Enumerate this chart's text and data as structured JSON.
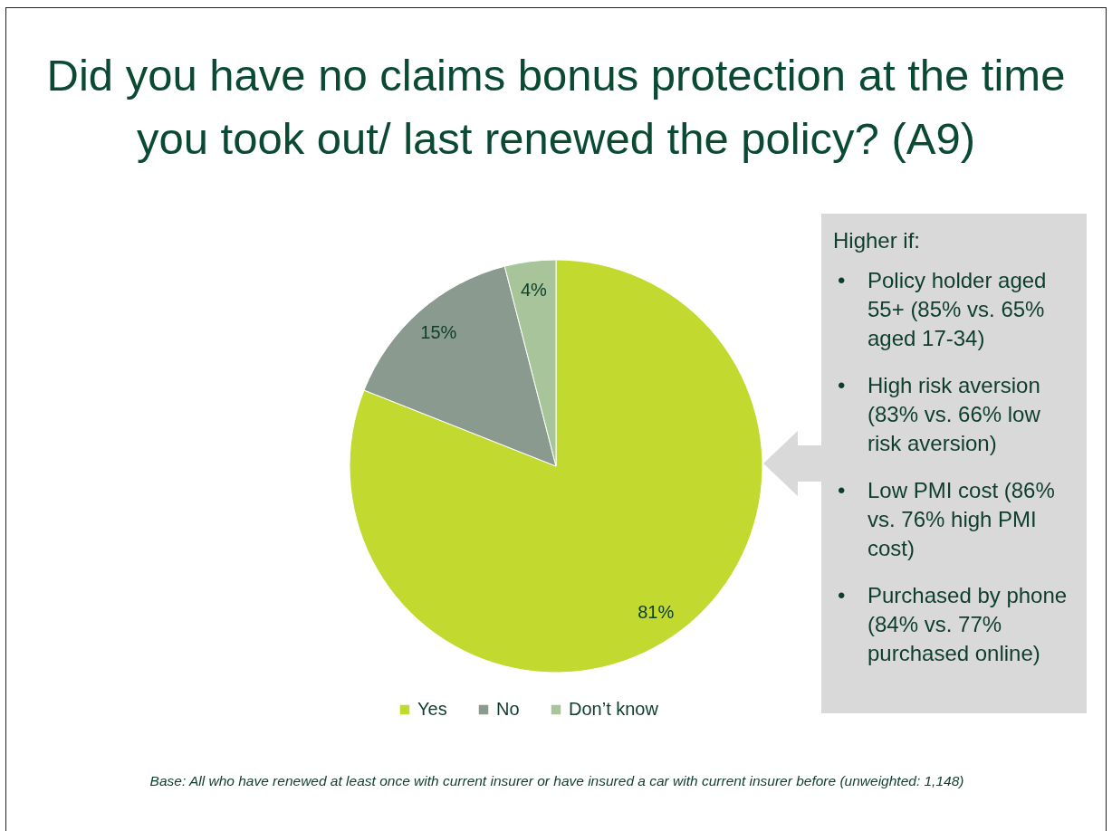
{
  "chart_data": {
    "type": "pie",
    "title": "Did you have no claims bonus protection at the time you took out/ last renewed the policy? (A9)",
    "categories": [
      "Yes",
      "No",
      "Don’t know"
    ],
    "values": [
      81,
      15,
      4
    ],
    "value_labels": [
      "81%",
      "15%",
      "4%"
    ],
    "colors": [
      "#c2d92f",
      "#8b9a8f",
      "#a8c49a"
    ],
    "legend": "bottom",
    "annotations": [
      "Higher if:",
      "• Policy holder aged 55+ (85% vs. 65% aged 17-34)",
      "• High risk aversion (83% vs. 66% low risk aversion)",
      "• Low PMI cost (86% vs. 76% high PMI cost)",
      "• Purchased by phone (84% vs. 77% purchased online)",
      "Base: All who have renewed at least once with current insurer or have insured a car with current insurer before (unweighted: 1,148)"
    ]
  }
}
